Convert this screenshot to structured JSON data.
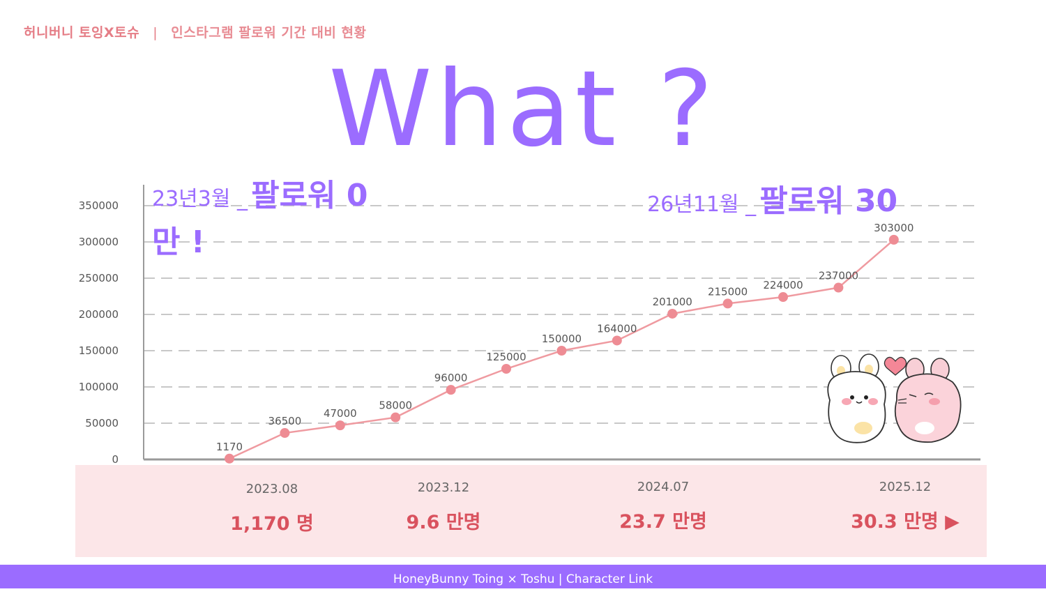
{
  "header": {
    "brand": "허니버니 토잉X토슈",
    "separator": "|",
    "subtitle": "인스타그램 팔로워 기간 대비 현황"
  },
  "hero_title": "What ?",
  "caption_left": {
    "date": "23년3월 _",
    "text": "팔로워 0",
    "tail": "만 !"
  },
  "caption_right": {
    "date": "26년11월 _",
    "text": "팔로워 30"
  },
  "chart_data": {
    "type": "line",
    "ylim": [
      0,
      350000
    ],
    "yticks": [
      0,
      50000,
      100000,
      150000,
      200000,
      250000,
      300000,
      350000
    ],
    "grid": true,
    "series": [
      {
        "values": [
          1170,
          36500,
          47000,
          58000,
          96000,
          125000,
          150000,
          164000,
          201000,
          215000,
          224000,
          237000,
          303000
        ]
      }
    ],
    "data_labels": [
      "1170",
      "36500",
      "47000",
      "58000",
      "96000",
      "125000",
      "150000",
      "164000",
      "201000",
      "215000",
      "224000",
      "237000",
      "303000"
    ],
    "line_color": "#ef9aa0",
    "point_color": "#ee8c94"
  },
  "summary": [
    {
      "date": "2023.08",
      "value": "1,170 명"
    },
    {
      "date": "2023.12",
      "value": "9.6 만명"
    },
    {
      "date": "2024.07",
      "value": "23.7 만명"
    },
    {
      "date": "2025.12",
      "value": "30.3 만명 ▶"
    }
  ],
  "footer": "HoneyBunny Toing × Toshu  |  Character Link"
}
